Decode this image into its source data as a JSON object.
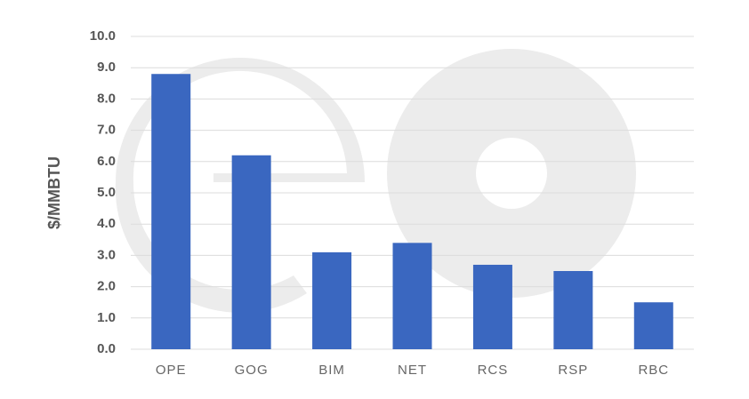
{
  "chart_data": {
    "type": "bar",
    "y_label": "$/MMBTU",
    "categories": [
      "OPE",
      "GOG",
      "BIM",
      "NET",
      "RCS",
      "RSP",
      "RBC"
    ],
    "values": [
      8.8,
      6.2,
      3.1,
      3.4,
      2.7,
      2.5,
      1.5
    ],
    "color": "#3a67c0",
    "ylim": [
      0,
      10
    ],
    "yticks": [
      {
        "value": 0,
        "label": "0.0"
      },
      {
        "value": 1,
        "label": "1.0"
      },
      {
        "value": 2,
        "label": "2.0"
      },
      {
        "value": 3,
        "label": "3.0"
      },
      {
        "value": 4,
        "label": "4.0"
      },
      {
        "value": 5,
        "label": "5.0"
      },
      {
        "value": 6,
        "label": "6.0"
      },
      {
        "value": 7,
        "label": "7.0"
      },
      {
        "value": 8,
        "label": "8.0"
      },
      {
        "value": 9,
        "label": "9.0"
      },
      {
        "value": 10,
        "label": "10.0"
      }
    ],
    "grid": true
  }
}
